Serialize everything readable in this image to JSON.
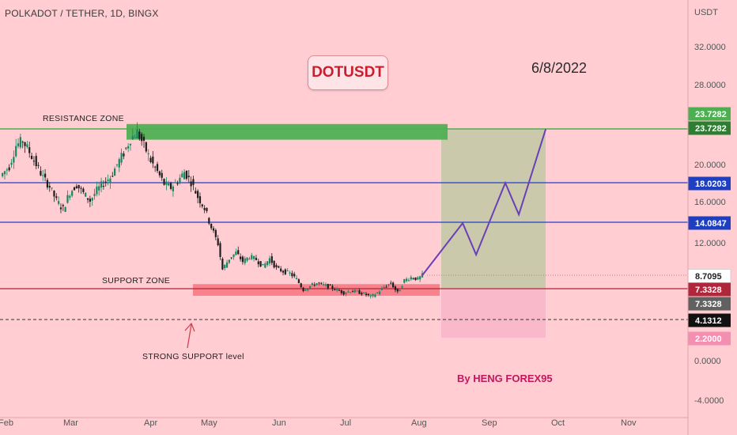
{
  "header": {
    "title": "POLKADOT / TETHER, 1D, BINGX",
    "unit": "USDT"
  },
  "symbol_box": "DOTUSDT",
  "date_text": "6/8/2022",
  "author": "By HENG FOREX95",
  "annotations": {
    "resistance_zone": "RESISTANCE ZONE",
    "support_zone": "SUPPORT ZONE",
    "strong_support": "STRONG SUPPORT level"
  },
  "colors": {
    "background": "#ffcdd2",
    "resistance_zone": "#4caf50",
    "support_zone": "#f77b86",
    "projection_target": "#c5c9a8",
    "projection_stop": "#f8b7c9",
    "level_lines": "#2340c8",
    "support_line": "#b0263a",
    "projection_path": "#6b3fb8",
    "candle_up": "#16875f",
    "candle_down": "#1e1e1e"
  },
  "chart_data": {
    "type": "candlestick",
    "title": "POLKADOT / TETHER, 1D, BINGX",
    "y_unit": "USDT",
    "y_ticks": [
      32.0,
      28.0,
      20.0,
      16.0,
      12.0,
      0.0,
      -4.0
    ],
    "y_tick_labels": [
      "32.0000",
      "28.0000",
      "20.0000",
      "16.0000",
      "12.0000",
      "0.0000",
      "-4.0000"
    ],
    "x_ticks": [
      "Feb",
      "Mar",
      "Apr",
      "May",
      "Jun",
      "Jul",
      "Aug",
      "Sep",
      "Oct",
      "Nov"
    ],
    "price_tags": [
      {
        "value": "23.7282",
        "color": "#4caf50",
        "text_color": "#ffffff"
      },
      {
        "value": "23.7282",
        "color": "#2e7d32",
        "text_color": "#ffffff"
      },
      {
        "value": "18.0203",
        "color": "#1e3fbf",
        "text_color": "#ffffff"
      },
      {
        "value": "14.0847",
        "color": "#1e3fbf",
        "text_color": "#ffffff"
      },
      {
        "value": "8.7095",
        "color": "#ffffff",
        "text_color": "#222222"
      },
      {
        "value": "7.3328",
        "color": "#b0263a",
        "text_color": "#ffffff"
      },
      {
        "value": "7.3328",
        "color": "#616161",
        "text_color": "#ffffff"
      },
      {
        "value": "4.1312",
        "color": "#111111",
        "text_color": "#ffffff"
      },
      {
        "value": "2.2000",
        "color": "#f48fb1",
        "text_color": "#ffffff"
      }
    ],
    "levels": [
      {
        "name": "resistance",
        "value": 23.7282
      },
      {
        "name": "level",
        "value": 18.0203
      },
      {
        "name": "level",
        "value": 14.0847
      },
      {
        "name": "support",
        "value": 7.3328
      },
      {
        "name": "strong-support",
        "value": 4.1312
      }
    ],
    "zones": {
      "resistance": [
        22.6,
        24.2
      ],
      "support": [
        6.6,
        7.8
      ],
      "projection_target": [
        7.3328,
        23.7282
      ],
      "projection_stop": [
        2.2,
        7.3328
      ]
    },
    "price_path": [
      [
        "2022-01-31",
        19.0
      ],
      [
        "2022-02-03",
        19.8
      ],
      [
        "2022-02-06",
        22.0
      ],
      [
        "2022-02-09",
        22.5
      ],
      [
        "2022-02-12",
        21.3
      ],
      [
        "2022-02-15",
        20.0
      ],
      [
        "2022-02-18",
        18.6
      ],
      [
        "2022-02-21",
        17.6
      ],
      [
        "2022-02-24",
        16.1
      ],
      [
        "2022-02-27",
        15.3
      ],
      [
        "2022-03-02",
        17.0
      ],
      [
        "2022-03-05",
        17.8
      ],
      [
        "2022-03-08",
        16.9
      ],
      [
        "2022-03-11",
        16.1
      ],
      [
        "2022-03-14",
        17.2
      ],
      [
        "2022-03-17",
        18.0
      ],
      [
        "2022-03-20",
        18.6
      ],
      [
        "2022-03-23",
        20.0
      ],
      [
        "2022-03-26",
        21.2
      ],
      [
        "2022-03-29",
        22.7
      ],
      [
        "2022-04-01",
        23.4
      ],
      [
        "2022-04-04",
        22.0
      ],
      [
        "2022-04-07",
        20.4
      ],
      [
        "2022-04-10",
        19.2
      ],
      [
        "2022-04-13",
        17.9
      ],
      [
        "2022-04-16",
        17.5
      ],
      [
        "2022-04-19",
        18.2
      ],
      [
        "2022-04-22",
        19.2
      ],
      [
        "2022-04-25",
        18.1
      ],
      [
        "2022-04-28",
        16.5
      ],
      [
        "2022-05-01",
        15.4
      ],
      [
        "2022-05-04",
        13.6
      ],
      [
        "2022-05-07",
        11.9
      ],
      [
        "2022-05-09",
        9.3
      ],
      [
        "2022-05-12",
        10.4
      ],
      [
        "2022-05-15",
        11.0
      ],
      [
        "2022-05-18",
        10.1
      ],
      [
        "2022-05-21",
        10.6
      ],
      [
        "2022-05-24",
        10.3
      ],
      [
        "2022-05-27",
        9.6
      ],
      [
        "2022-05-30",
        10.4
      ],
      [
        "2022-06-02",
        9.4
      ],
      [
        "2022-06-05",
        9.1
      ],
      [
        "2022-06-08",
        8.9
      ],
      [
        "2022-06-11",
        8.3
      ],
      [
        "2022-06-14",
        7.2
      ],
      [
        "2022-06-17",
        7.6
      ],
      [
        "2022-06-20",
        7.9
      ],
      [
        "2022-06-23",
        7.7
      ],
      [
        "2022-06-26",
        7.5
      ],
      [
        "2022-06-29",
        7.2
      ],
      [
        "2022-07-02",
        6.9
      ],
      [
        "2022-07-05",
        7.1
      ],
      [
        "2022-07-08",
        7.0
      ],
      [
        "2022-07-11",
        6.8
      ],
      [
        "2022-07-14",
        6.5
      ],
      [
        "2022-07-17",
        6.9
      ],
      [
        "2022-07-20",
        7.5
      ],
      [
        "2022-07-23",
        7.9
      ],
      [
        "2022-07-26",
        6.9
      ],
      [
        "2022-07-29",
        8.2
      ],
      [
        "2022-08-01",
        8.5
      ],
      [
        "2022-08-04",
        8.3
      ],
      [
        "2022-08-06",
        8.7
      ]
    ],
    "projection_path": [
      [
        "2022-08-06",
        8.7
      ],
      [
        "2022-08-24",
        14.0
      ],
      [
        "2022-08-30",
        10.8
      ],
      [
        "2022-09-12",
        18.0
      ],
      [
        "2022-09-18",
        14.8
      ],
      [
        "2022-09-30",
        23.7
      ]
    ]
  }
}
